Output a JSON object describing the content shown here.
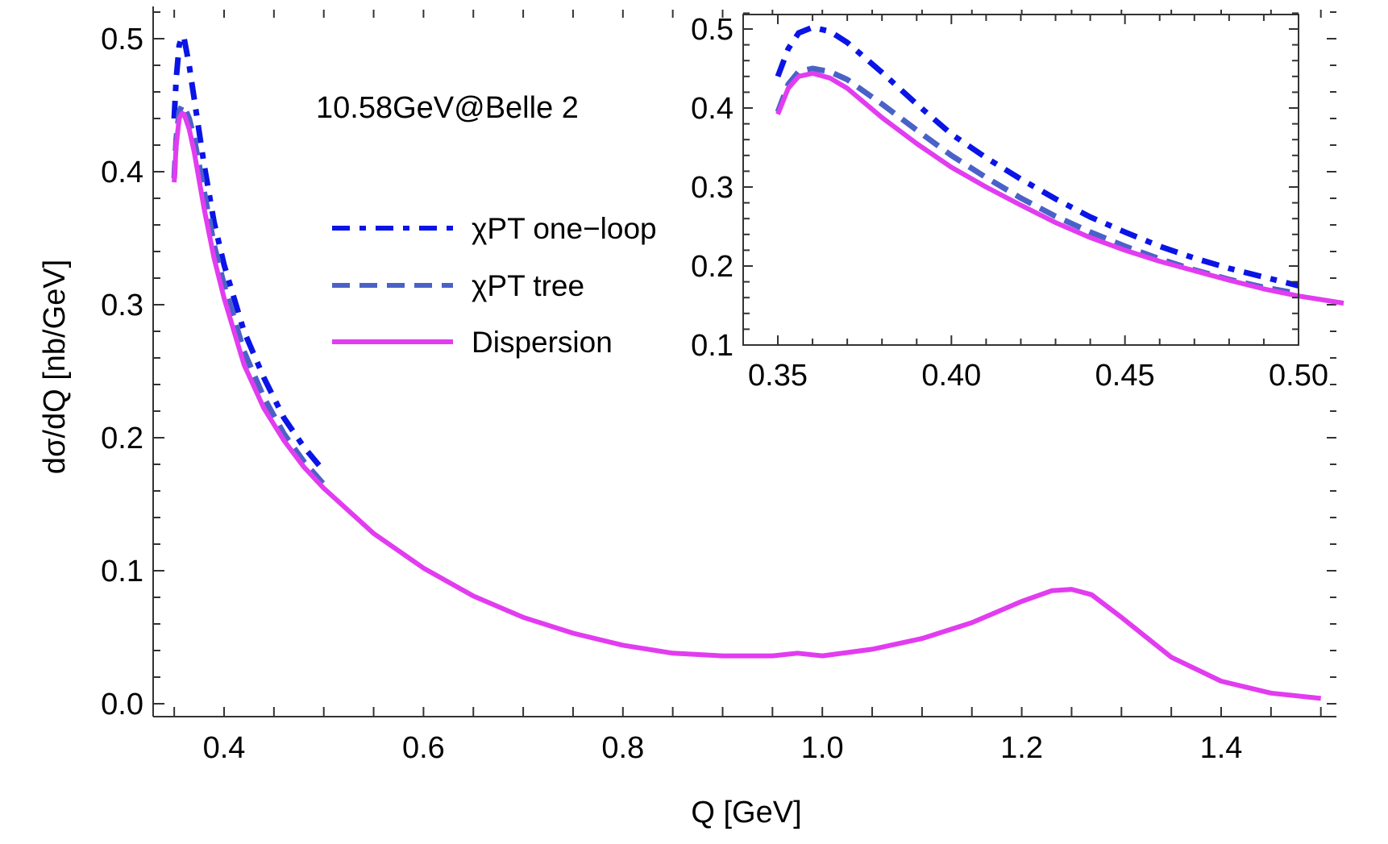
{
  "chart_data": [
    {
      "id": "main",
      "type": "line",
      "title": "",
      "annotation": "10.58GeV@Belle 2",
      "xlabel": "Q [GeV]",
      "ylabel": "dσ/dQ [nb/GeV]",
      "xlim": [
        0.33,
        1.516
      ],
      "ylim": [
        -0.01,
        0.525
      ],
      "xticks": [
        0.4,
        0.6,
        0.8,
        1.0,
        1.2,
        1.4
      ],
      "xtick_labels": [
        "0.4",
        "0.6",
        "0.8",
        "1.0",
        "1.2",
        "1.4"
      ],
      "yticks": [
        0.0,
        0.1,
        0.2,
        0.3,
        0.4,
        0.5
      ],
      "ytick_labels": [
        "0.0",
        "0.1",
        "0.2",
        "0.3",
        "0.4",
        "0.5"
      ],
      "grid": false,
      "legend": {
        "position": "upper-center-left",
        "entries": [
          {
            "label": "χPT one−loop",
            "style": "dash-dot",
            "color": "#0a14e6"
          },
          {
            "label": "χPT tree",
            "style": "dashed",
            "color": "#4a62c8"
          },
          {
            "label": "Dispersion",
            "style": "solid",
            "color": "#e23cf0"
          }
        ]
      },
      "series": [
        {
          "name": "χPT one−loop",
          "color": "#0a14e6",
          "style": "dash-dot",
          "x": [
            0.35,
            0.352,
            0.355,
            0.358,
            0.36,
            0.365,
            0.37,
            0.38,
            0.39,
            0.4,
            0.42,
            0.44,
            0.46,
            0.48,
            0.5
          ],
          "y": [
            0.44,
            0.47,
            0.495,
            0.502,
            0.5,
            0.48,
            0.455,
            0.405,
            0.362,
            0.33,
            0.28,
            0.245,
            0.215,
            0.193,
            0.175
          ]
        },
        {
          "name": "χPT tree",
          "color": "#4a62c8",
          "style": "dashed",
          "x": [
            0.35,
            0.352,
            0.355,
            0.358,
            0.36,
            0.365,
            0.37,
            0.38,
            0.39,
            0.4,
            0.42,
            0.44,
            0.46,
            0.48,
            0.5
          ],
          "y": [
            0.395,
            0.425,
            0.445,
            0.45,
            0.449,
            0.44,
            0.425,
            0.385,
            0.345,
            0.315,
            0.265,
            0.23,
            0.203,
            0.182,
            0.165
          ]
        },
        {
          "name": "Dispersion",
          "color": "#e23cf0",
          "style": "solid",
          "x": [
            0.35,
            0.352,
            0.355,
            0.358,
            0.36,
            0.365,
            0.37,
            0.38,
            0.39,
            0.4,
            0.42,
            0.44,
            0.46,
            0.48,
            0.5,
            0.55,
            0.6,
            0.65,
            0.7,
            0.75,
            0.8,
            0.85,
            0.9,
            0.95,
            0.975,
            1.0,
            1.05,
            1.1,
            1.15,
            1.2,
            1.23,
            1.25,
            1.27,
            1.3,
            1.35,
            1.4,
            1.45,
            1.5
          ],
          "y": [
            0.392,
            0.42,
            0.44,
            0.444,
            0.443,
            0.432,
            0.415,
            0.372,
            0.335,
            0.305,
            0.255,
            0.222,
            0.198,
            0.178,
            0.162,
            0.128,
            0.102,
            0.081,
            0.065,
            0.053,
            0.044,
            0.038,
            0.036,
            0.036,
            0.038,
            0.036,
            0.041,
            0.049,
            0.061,
            0.077,
            0.085,
            0.086,
            0.082,
            0.065,
            0.035,
            0.017,
            0.008,
            0.004
          ]
        }
      ]
    },
    {
      "id": "inset",
      "type": "line",
      "title": "",
      "xlabel": "",
      "ylabel": "",
      "xlim": [
        0.35,
        0.5
      ],
      "ylim": [
        0.1,
        0.52
      ],
      "xticks": [
        0.35,
        0.4,
        0.45,
        0.5
      ],
      "xtick_labels": [
        "0.35",
        "0.40",
        "0.45",
        "0.50"
      ],
      "yticks": [
        0.1,
        0.2,
        0.3,
        0.4,
        0.5
      ],
      "ytick_labels": [
        "0.1",
        "0.2",
        "0.3",
        "0.4",
        "0.5"
      ],
      "grid": false,
      "series": [
        {
          "name": "χPT one−loop",
          "x": [
            0.35,
            0.353,
            0.356,
            0.36,
            0.365,
            0.37,
            0.38,
            0.39,
            0.4,
            0.41,
            0.42,
            0.43,
            0.44,
            0.45,
            0.46,
            0.47,
            0.48,
            0.49,
            0.5
          ],
          "y": [
            0.44,
            0.475,
            0.495,
            0.502,
            0.497,
            0.483,
            0.445,
            0.405,
            0.367,
            0.337,
            0.31,
            0.285,
            0.262,
            0.243,
            0.225,
            0.21,
            0.197,
            0.186,
            0.175
          ]
        },
        {
          "name": "χPT tree",
          "x": [
            0.35,
            0.353,
            0.356,
            0.36,
            0.365,
            0.37,
            0.38,
            0.39,
            0.4,
            0.41,
            0.42,
            0.43,
            0.44,
            0.45,
            0.46,
            0.47,
            0.48,
            0.49,
            0.5
          ],
          "y": [
            0.395,
            0.43,
            0.446,
            0.45,
            0.446,
            0.436,
            0.405,
            0.372,
            0.34,
            0.312,
            0.286,
            0.263,
            0.243,
            0.225,
            0.209,
            0.195,
            0.183,
            0.173,
            0.165
          ]
        },
        {
          "name": "Dispersion",
          "x": [
            0.35,
            0.353,
            0.356,
            0.36,
            0.365,
            0.37,
            0.38,
            0.39,
            0.4,
            0.41,
            0.42,
            0.43,
            0.44,
            0.45,
            0.46,
            0.47,
            0.48,
            0.49,
            0.5,
            0.513
          ],
          "y": [
            0.392,
            0.425,
            0.44,
            0.444,
            0.438,
            0.425,
            0.388,
            0.355,
            0.325,
            0.3,
            0.277,
            0.255,
            0.236,
            0.22,
            0.206,
            0.194,
            0.182,
            0.171,
            0.162,
            0.153
          ]
        }
      ]
    }
  ]
}
